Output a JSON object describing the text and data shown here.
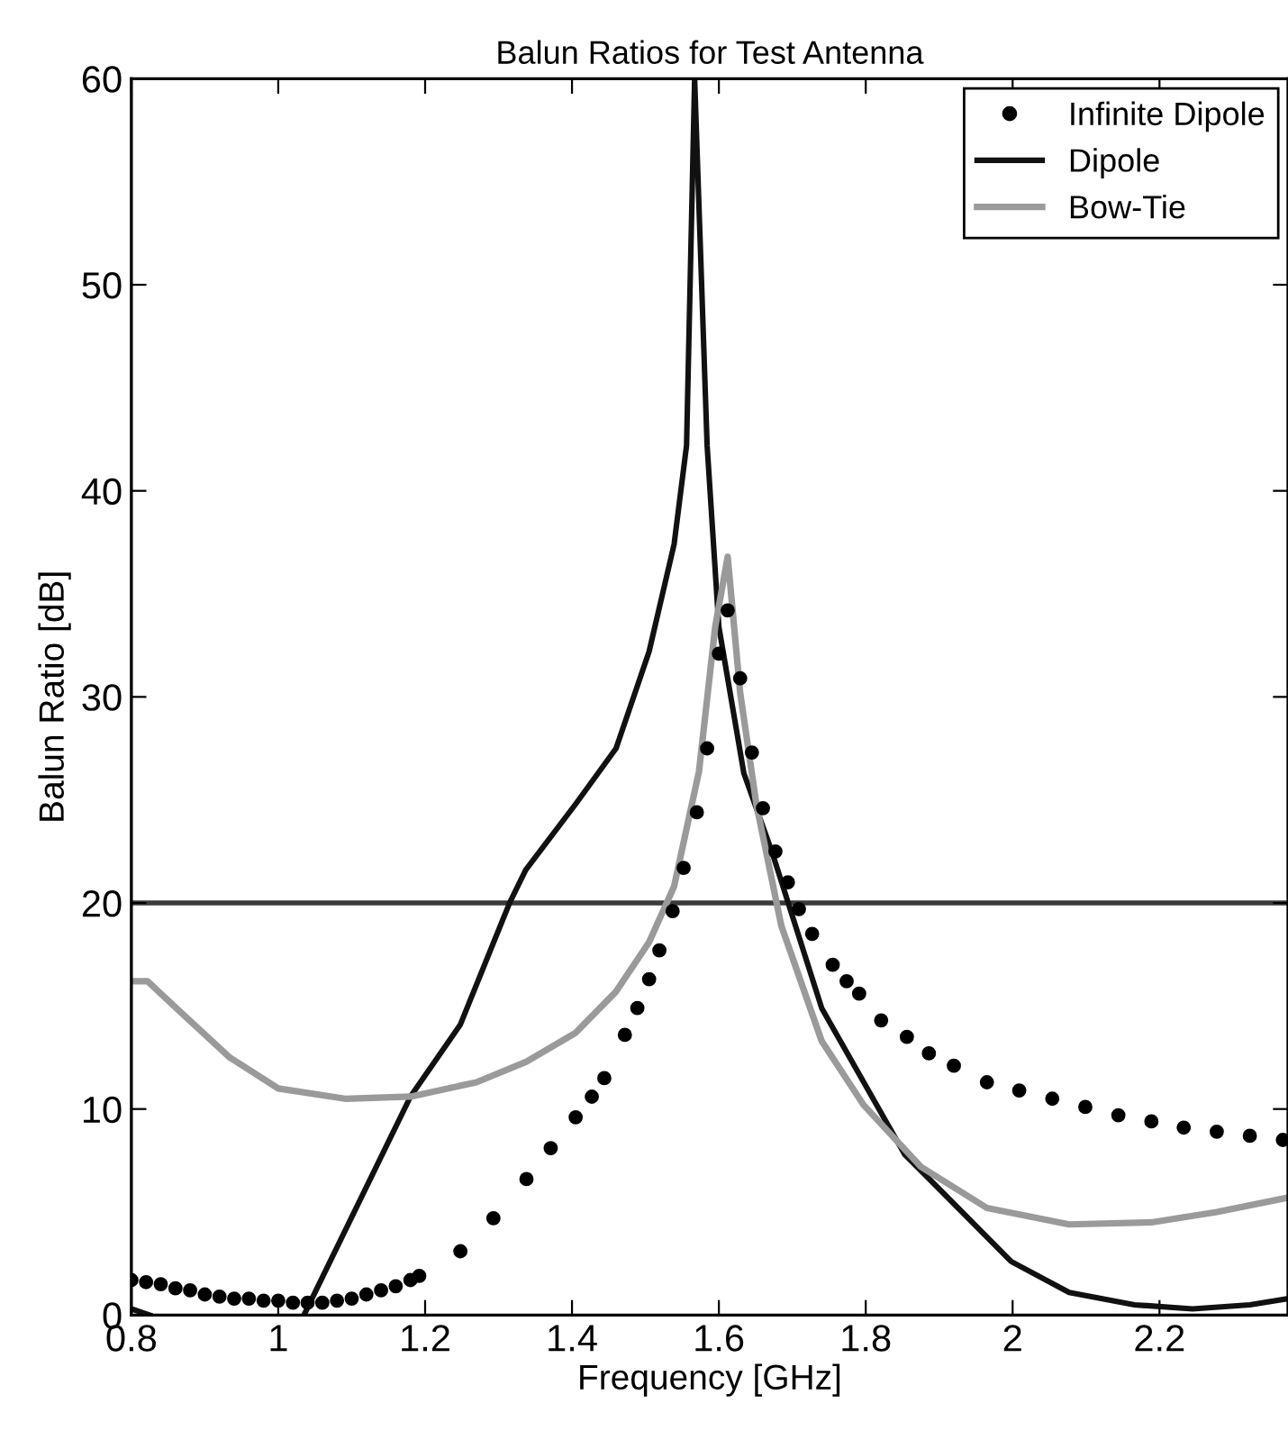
{
  "chart_data": {
    "type": "line",
    "title": "Balun Ratios for Test Antenna",
    "xlabel": "Frequency [GHz]",
    "ylabel": "Balun Ratio [dB]",
    "xlim": [
      0.8,
      2.375
    ],
    "ylim": [
      0,
      60
    ],
    "xticks": [
      0.8,
      1,
      1.2,
      1.4,
      1.6,
      1.8,
      2,
      2.2
    ],
    "yticks": [
      0,
      10,
      20,
      30,
      40,
      50,
      60
    ],
    "grid": false,
    "legend": "top right",
    "ref_lines": [
      {
        "axis": "y",
        "value": 20,
        "color": "#3a3a3a"
      }
    ],
    "series": [
      {
        "name": "Infinite Dipole",
        "type": "scatter",
        "marker": "circle",
        "color": "#000000",
        "x": [
          0.8,
          0.82,
          0.84,
          0.86,
          0.88,
          0.9,
          0.92,
          0.94,
          0.96,
          0.98,
          1.0,
          1.02,
          1.04,
          1.06,
          1.08,
          1.1,
          1.12,
          1.14,
          1.16,
          1.18,
          1.192,
          1.248,
          1.293,
          1.338,
          1.371,
          1.405,
          1.427,
          1.444,
          1.472,
          1.489,
          1.505,
          1.519,
          1.537,
          1.552,
          1.57,
          1.584,
          1.6,
          1.612,
          1.629,
          1.645,
          1.66,
          1.677,
          1.694,
          1.709,
          1.727,
          1.755,
          1.774,
          1.791,
          1.821,
          1.856,
          1.886,
          1.92,
          1.965,
          2.009,
          2.054,
          2.099,
          2.144,
          2.189,
          2.233,
          2.278,
          2.323,
          2.368
        ],
        "values": [
          1.7,
          1.6,
          1.5,
          1.3,
          1.2,
          1.0,
          0.9,
          0.8,
          0.8,
          0.7,
          0.7,
          0.6,
          0.6,
          0.6,
          0.7,
          0.8,
          1.0,
          1.2,
          1.4,
          1.7,
          1.9,
          3.1,
          4.7,
          6.6,
          8.1,
          9.6,
          10.6,
          11.5,
          13.6,
          14.9,
          16.3,
          17.7,
          19.6,
          21.7,
          24.4,
          27.5,
          32.1,
          34.2,
          30.9,
          27.3,
          24.6,
          22.5,
          21.0,
          19.7,
          18.5,
          17.0,
          16.2,
          15.6,
          14.3,
          13.5,
          12.7,
          12.1,
          11.3,
          10.9,
          10.5,
          10.1,
          9.7,
          9.4,
          9.1,
          8.9,
          8.7,
          8.5
        ]
      },
      {
        "name": "Dipole",
        "color": "#111111",
        "line_style": "solid",
        "x": [
          0.8,
          0.825,
          0.93,
          1.035,
          1.18,
          1.248,
          1.315,
          1.337,
          1.405,
          1.46,
          1.505,
          1.539,
          1.556,
          1.567,
          1.584,
          1.6,
          1.634,
          1.673,
          1.74,
          1.853,
          1.909,
          1.998,
          2.077,
          2.166,
          2.245,
          2.323,
          2.375
        ],
        "values": [
          0.3,
          0.0,
          null,
          0.0,
          10.6,
          14.1,
          20.0,
          21.6,
          24.8,
          27.5,
          32.2,
          37.4,
          42.2,
          60.0,
          42.2,
          33.4,
          26.3,
          22.4,
          14.9,
          7.8,
          5.8,
          2.6,
          1.1,
          0.5,
          0.3,
          0.5,
          0.8
        ]
      },
      {
        "name": "Bow-Tie",
        "color": "#9a9a9a",
        "line_style": "solid",
        "x": [
          0.8,
          0.822,
          0.867,
          0.934,
          1.0,
          1.091,
          1.18,
          1.27,
          1.338,
          1.405,
          1.46,
          1.505,
          1.539,
          1.573,
          1.595,
          1.612,
          1.629,
          1.651,
          1.685,
          1.74,
          1.797,
          1.875,
          1.965,
          2.077,
          2.189,
          2.278,
          2.375
        ],
        "values": [
          16.2,
          16.2,
          14.7,
          12.5,
          11.0,
          10.5,
          10.6,
          11.3,
          12.3,
          13.7,
          15.7,
          18.1,
          20.8,
          26.4,
          33.4,
          36.8,
          30.2,
          24.8,
          18.9,
          13.3,
          10.2,
          7.2,
          5.2,
          4.4,
          4.5,
          5.0,
          5.7
        ]
      }
    ]
  }
}
